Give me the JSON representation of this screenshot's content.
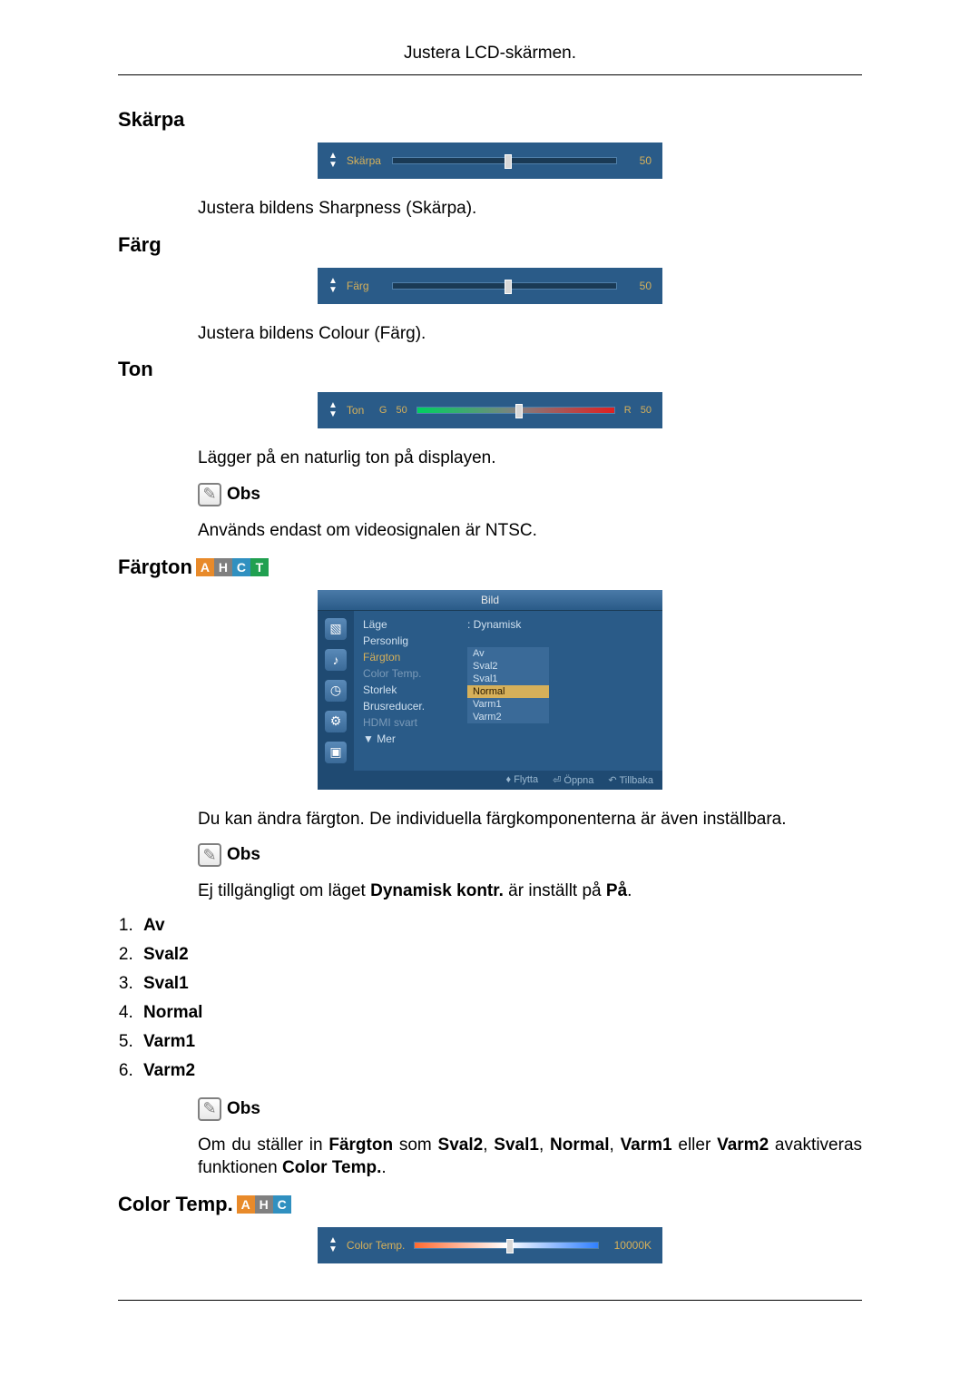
{
  "header": {
    "title": "Justera LCD-skärmen."
  },
  "sections": {
    "sharpness": {
      "heading": "Skärpa",
      "slider": {
        "label": "Skärpa",
        "value": "50",
        "thumb_pct": 50,
        "bg": "#2a5b88",
        "label_color": "#d6b05a"
      },
      "desc": "Justera bildens Sharpness (Skärpa)."
    },
    "color": {
      "heading": "Färg",
      "slider": {
        "label": "Färg",
        "value": "50",
        "thumb_pct": 50,
        "bg": "#2a5b88",
        "label_color": "#d6b05a"
      },
      "desc": "Justera bildens Colour (Färg)."
    },
    "tone": {
      "heading": "Ton",
      "slider": {
        "label": "Ton",
        "g_label": "G",
        "g_value": "50",
        "r_label": "R",
        "r_value": "50",
        "thumb_pct": 50,
        "gradient_css": "linear-gradient(to right, #00d060, #808080, #e02020)"
      },
      "desc": "Lägger på en naturlig ton på displayen.",
      "obs_label": "Obs",
      "obs_text": "Används endast om videosignalen är NTSC."
    },
    "fargton": {
      "heading": "Färgton",
      "badges": [
        {
          "letter": "A",
          "bg": "#e88a2a"
        },
        {
          "letter": "H",
          "bg": "#808080"
        },
        {
          "letter": "C",
          "bg": "#3090c0"
        },
        {
          "letter": "T",
          "bg": "#20a050"
        }
      ],
      "menu": {
        "title": "Bild",
        "left_items": [
          {
            "label": "Läge",
            "cls": ""
          },
          {
            "label": "Personlig",
            "cls": ""
          },
          {
            "label": "Färgton",
            "cls": "hl"
          },
          {
            "label": "Color Temp.",
            "cls": "dim"
          },
          {
            "label": "Storlek",
            "cls": ""
          },
          {
            "label": "Brusreducer.",
            "cls": ""
          },
          {
            "label": "HDMI svart",
            "cls": "dim"
          },
          {
            "label": "▼   Mer",
            "cls": ""
          }
        ],
        "right_value": ": Dynamisk",
        "options": [
          {
            "label": "Av",
            "sel": false
          },
          {
            "label": "Sval2",
            "sel": false
          },
          {
            "label": "Sval1",
            "sel": false
          },
          {
            "label": "Normal",
            "sel": true
          },
          {
            "label": "Varm1",
            "sel": false
          },
          {
            "label": "Varm2",
            "sel": false
          }
        ],
        "footer": [
          {
            "label": "♦ Flytta"
          },
          {
            "label": "⏎ Öppna"
          },
          {
            "label": "↶ Tillbaka"
          }
        ]
      },
      "desc": "Du kan ändra färgton. De individuella färgkomponenterna är även inställbara.",
      "obs1_label": "Obs",
      "obs1_prefix": "Ej tillgängligt om läget ",
      "obs1_bold1": "Dynamisk kontr.",
      "obs1_mid": " är inställt på ",
      "obs1_bold2": "På",
      "obs1_end": ".",
      "list": [
        "Av",
        "Sval2",
        "Sval1",
        "Normal",
        "Varm1",
        "Varm2"
      ],
      "obs2_label": "Obs",
      "obs2_p1": "Om du ställer in ",
      "obs2_b1": "Färgton",
      "obs2_p2": " som ",
      "obs2_b2": "Sval2",
      "obs2_p3": ", ",
      "obs2_b3": "Sval1",
      "obs2_p4": ", ",
      "obs2_b4": "Normal",
      "obs2_p5": ", ",
      "obs2_b5": "Varm1",
      "obs2_p6": " eller ",
      "obs2_b6": "Varm2",
      "obs2_p7": " avaktiveras funk­tionen ",
      "obs2_b7": "Color Temp.",
      "obs2_p8": "."
    },
    "colortemp": {
      "heading": "Color Temp.",
      "badges": [
        {
          "letter": "A",
          "bg": "#e88a2a"
        },
        {
          "letter": "H",
          "bg": "#808080"
        },
        {
          "letter": "C",
          "bg": "#3090c0"
        }
      ],
      "slider": {
        "label": "Color Temp.",
        "value": "10000K",
        "thumb_pct": 50,
        "gradient_css": "linear-gradient(to right, #ff6a30, #ffffff, #3080ff)"
      }
    }
  }
}
